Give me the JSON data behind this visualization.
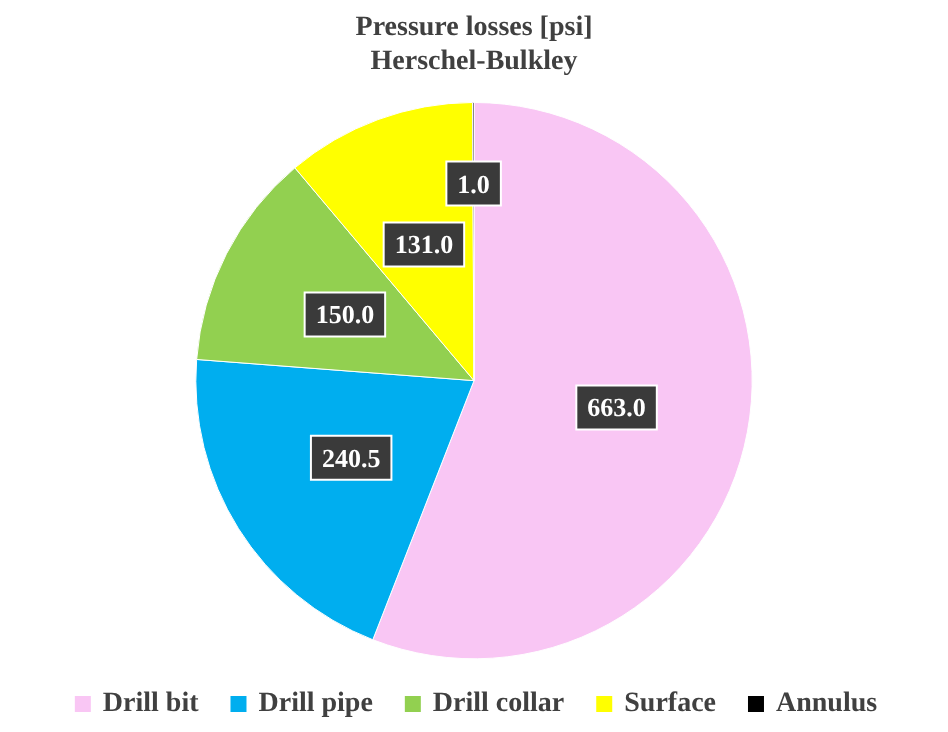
{
  "chart_data": {
    "type": "pie",
    "title": "Pressure losses [psi]",
    "subtitle": "Herschel-Bulkley",
    "categories": [
      "Drill bit",
      "Drill pipe",
      "Drill collar",
      "Surface",
      "Annulus"
    ],
    "values": [
      663.0,
      240.5,
      150.0,
      131.0,
      1.0
    ],
    "colors": [
      "#f9c6f4",
      "#00aeef",
      "#92d050",
      "#ffff00",
      "#000000"
    ],
    "value_labels": [
      "663.0",
      "240.5",
      "150.0",
      "131.0",
      "1.0"
    ],
    "legend": "bottom"
  }
}
